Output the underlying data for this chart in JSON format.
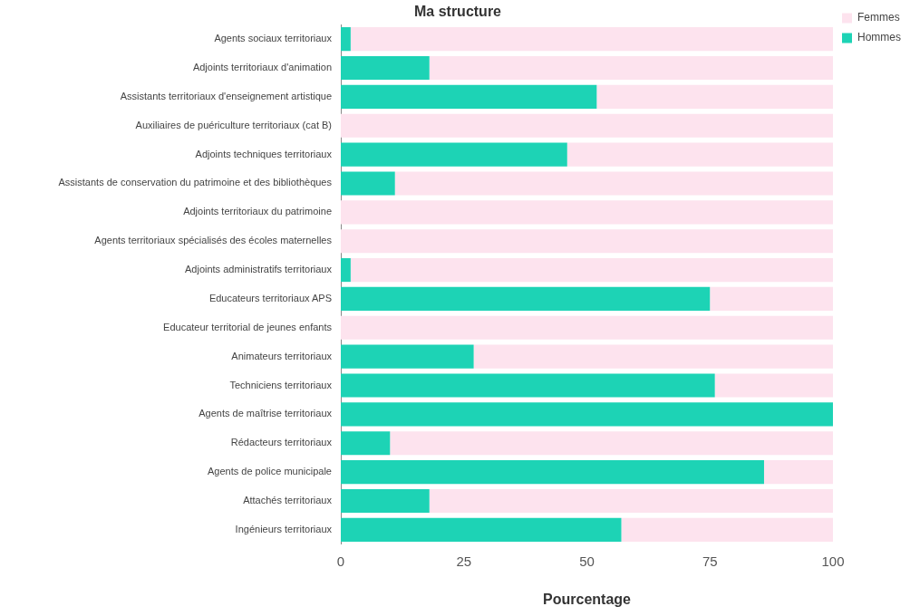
{
  "chart_data": {
    "type": "bar",
    "orientation": "horizontal",
    "stacked": true,
    "title": "Ma structure",
    "xlabel": "Pourcentage",
    "categories": [
      "Agents sociaux territoriaux",
      "Adjoints territoriaux d'animation",
      "Assistants territoriaux d'enseignement artistique",
      "Auxiliaires de puériculture territoriaux (cat B)",
      "Adjoints techniques territoriaux",
      "Assistants de conservation du patrimoine et des bibliothèques",
      "Adjoints territoriaux du patrimoine",
      "Agents territoriaux spécialisés des écoles maternelles",
      "Adjoints administratifs territoriaux",
      "Educateurs territoriaux APS",
      "Educateur territorial de jeunes enfants",
      "Animateurs territoriaux",
      "Techniciens territoriaux",
      "Agents de maîtrise territoriaux",
      "Rédacteurs territoriaux",
      "Agents de police municipale",
      "Attachés territoriaux",
      "Ingénieurs territoriaux"
    ],
    "series": [
      {
        "name": "Hommes",
        "color": "#1dd3b5",
        "values": [
          2,
          18,
          52,
          0,
          46,
          11,
          0,
          0,
          2,
          75,
          0,
          27,
          76,
          100,
          10,
          86,
          18,
          57
        ]
      },
      {
        "name": "Femmes",
        "color": "#fde3ee",
        "values": [
          98,
          82,
          48,
          100,
          54,
          89,
          100,
          100,
          98,
          25,
          100,
          73,
          24,
          0,
          90,
          14,
          82,
          43
        ]
      }
    ],
    "xlim": [
      0,
      100
    ],
    "xticks": [
      0,
      25,
      50,
      75,
      100
    ],
    "grid": false,
    "legend": "top right"
  }
}
